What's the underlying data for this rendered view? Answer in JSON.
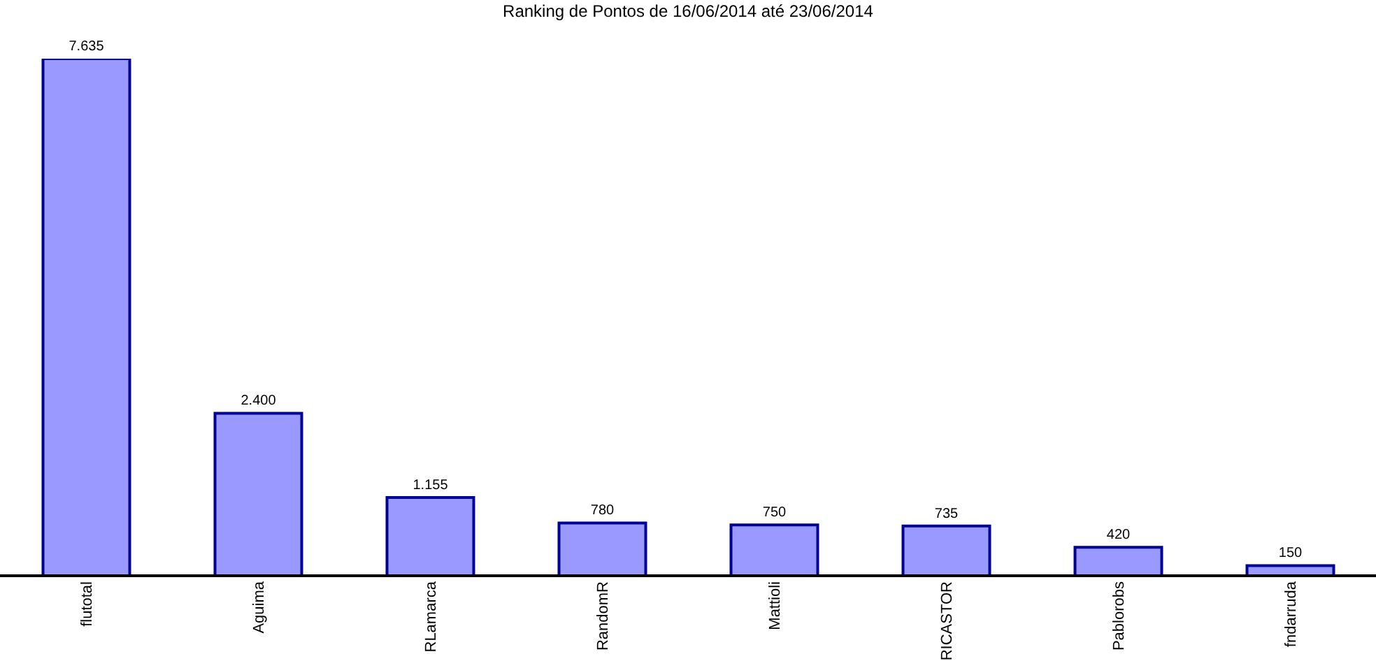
{
  "chart_data": {
    "type": "bar",
    "title": "Ranking de Pontos de 16/06/2014 até 23/06/2014",
    "categories": [
      "flutotal",
      "Aguima",
      "RLamarca",
      "RandomR",
      "Mattioli",
      "RICASTOR",
      "Pablorobs",
      "fndarruda"
    ],
    "values": [
      7635,
      2400,
      1155,
      780,
      750,
      735,
      420,
      150
    ],
    "color": "#9999ff",
    "value_labels": [
      "7.635",
      "2.400",
      "1.155",
      "780",
      "750",
      "735",
      "420",
      "150"
    ],
    "tick_labels": "x"
  }
}
